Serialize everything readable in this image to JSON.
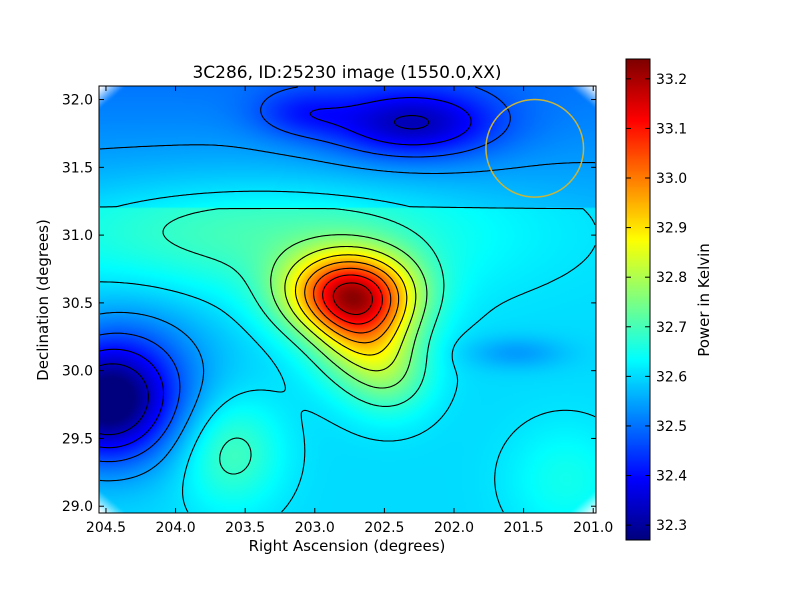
{
  "chart_data": {
    "type": "heatmap",
    "title": "3C286, ID:25230 image (1550.0,XX)",
    "xlabel": "Right Ascension (degrees)",
    "ylabel": "Declination (degrees)",
    "colorbar_label": "Power in Kelvin",
    "xlim": [
      204.55,
      200.98
    ],
    "ylim": [
      28.95,
      32.1
    ],
    "x_ticks": [
      204.5,
      204.0,
      203.5,
      203.0,
      202.5,
      202.0,
      201.5,
      201.0
    ],
    "x_tick_labels": [
      "204.5",
      "204.0",
      "203.5",
      "203.0",
      "202.5",
      "202.0",
      "201.5",
      "201.0"
    ],
    "y_ticks": [
      29.0,
      29.5,
      30.0,
      30.5,
      31.0,
      31.5,
      32.0
    ],
    "y_tick_labels": [
      "29.0",
      "29.5",
      "30.0",
      "30.5",
      "31.0",
      "31.5",
      "32.0"
    ],
    "colorbar_range": [
      32.27,
      33.24
    ],
    "colorbar_ticks": [
      32.3,
      32.4,
      32.5,
      32.6,
      32.7,
      32.8,
      32.9,
      33.0,
      33.1,
      33.2
    ],
    "colorbar_tick_labels": [
      "32.3",
      "32.4",
      "32.5",
      "32.6",
      "32.7",
      "32.8",
      "32.9",
      "33.0",
      "33.1",
      "33.2"
    ],
    "colormap": "jet",
    "contour_color": "#000000",
    "features": [
      {
        "kind": "peak",
        "ra": 202.75,
        "dec": 30.57,
        "value": 33.24
      },
      {
        "kind": "minimum",
        "ra": 204.5,
        "dec": 29.75,
        "value": 32.27
      },
      {
        "kind": "minimum",
        "ra": 202.3,
        "dec": 31.82,
        "value": 32.4
      },
      {
        "kind": "saddle",
        "ra": 201.55,
        "dec": 30.13,
        "value": 32.56
      }
    ],
    "beam_circle": {
      "ra": 201.42,
      "dec": 31.64,
      "radius_deg": 0.36,
      "color": "#c8b43a"
    }
  }
}
